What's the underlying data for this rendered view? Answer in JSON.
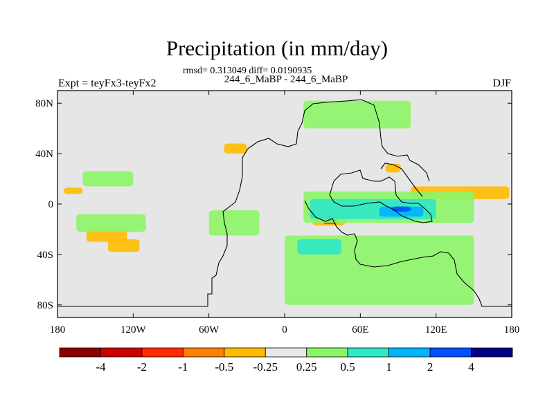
{
  "chart_data": {
    "type": "heatmap",
    "title": "Precipitation (in mm/day)",
    "stats_text": "rmsd= 0.313049 diff= 0.0190935",
    "subtitle": "244_6_MaBP - 244_6_MaBP",
    "left_label": "Expt = teyFx3-teyFx2",
    "right_label": "DJF",
    "x_range": [
      -180,
      180
    ],
    "y_range": [
      -90,
      90
    ],
    "x_ticks": [
      {
        "value": -180,
        "label": "180"
      },
      {
        "value": -120,
        "label": "120W"
      },
      {
        "value": -60,
        "label": "60W"
      },
      {
        "value": 0,
        "label": "0"
      },
      {
        "value": 60,
        "label": "60E"
      },
      {
        "value": 120,
        "label": "120E"
      },
      {
        "value": 180,
        "label": "180"
      }
    ],
    "y_ticks": [
      {
        "value": 80,
        "label": "80N"
      },
      {
        "value": 40,
        "label": "40N"
      },
      {
        "value": 0,
        "label": "0"
      },
      {
        "value": -40,
        "label": "40S"
      },
      {
        "value": -80,
        "label": "80S"
      }
    ],
    "colorbar": {
      "colors": [
        "#8b0000",
        "#cd0000",
        "#ff2a00",
        "#ff7f00",
        "#ffbb00",
        "#e8e8e8",
        "#8cf566",
        "#2ee8c8",
        "#00b4ff",
        "#0050ff",
        "#000080"
      ],
      "labels": [
        "-4",
        "-2",
        "-1",
        "-0.5",
        "-0.25",
        "0.25",
        "0.5",
        "1",
        "2",
        "4"
      ]
    },
    "anomaly_regions": [
      {
        "category": "-0.25",
        "lon": [
          -157,
          -125
        ],
        "lat": [
          -30,
          -20
        ]
      },
      {
        "category": "-0.25",
        "lon": [
          -140,
          -115
        ],
        "lat": [
          -38,
          -28
        ]
      },
      {
        "category": "-0.25",
        "lon": [
          -175,
          -160
        ],
        "lat": [
          8,
          13
        ]
      },
      {
        "category": "-0.25",
        "lon": [
          -48,
          -30
        ],
        "lat": [
          40,
          48
        ]
      },
      {
        "category": "-0.25",
        "lon": [
          100,
          178
        ],
        "lat": [
          4,
          14
        ]
      },
      {
        "category": "-0.25",
        "lon": [
          80,
          92
        ],
        "lat": [
          25,
          32
        ]
      },
      {
        "category": "-0.25",
        "lon": [
          22,
          48
        ],
        "lat": [
          -17,
          -8
        ]
      },
      {
        "category": "-1",
        "lon": [
          82,
          96
        ],
        "lat": [
          -7,
          2
        ]
      },
      {
        "category": "-1",
        "lon": [
          30,
          42
        ],
        "lat": [
          -16,
          -8
        ]
      },
      {
        "category": "0.25",
        "lon": [
          -165,
          -110
        ],
        "lat": [
          -22,
          -8
        ]
      },
      {
        "category": "0.25",
        "lon": [
          -160,
          -120
        ],
        "lat": [
          14,
          26
        ]
      },
      {
        "category": "0.25",
        "lon": [
          -60,
          -20
        ],
        "lat": [
          -25,
          -5
        ]
      },
      {
        "category": "0.25",
        "lon": [
          0,
          150
        ],
        "lat": [
          -80,
          -25
        ]
      },
      {
        "category": "0.25",
        "lon": [
          15,
          150
        ],
        "lat": [
          -15,
          10
        ]
      },
      {
        "category": "0.25",
        "lon": [
          15,
          100
        ],
        "lat": [
          60,
          82
        ]
      },
      {
        "category": "0.5",
        "lon": [
          20,
          120
        ],
        "lat": [
          -12,
          4
        ]
      },
      {
        "category": "0.5",
        "lon": [
          10,
          45
        ],
        "lat": [
          -40,
          -28
        ]
      },
      {
        "category": "1",
        "lon": [
          75,
          110
        ],
        "lat": [
          -10,
          -2
        ]
      },
      {
        "category": "2",
        "lon": [
          85,
          100
        ],
        "lat": [
          -6,
          -2
        ]
      }
    ]
  }
}
